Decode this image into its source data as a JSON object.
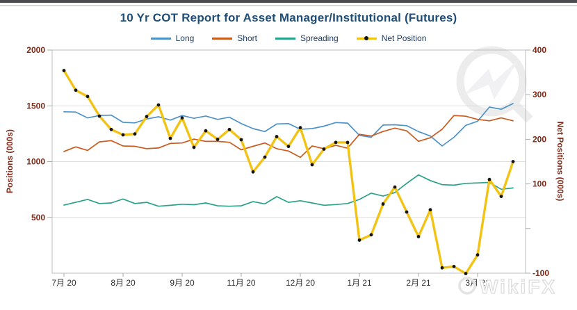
{
  "window": {
    "top_edge_color": "#4a4a4f",
    "divider_color": "#d6d6da"
  },
  "chart_data": {
    "type": "line",
    "title": "10 Yr COT Report for Asset Manager/Institutional (Futures)",
    "title_color": "#1f4e79",
    "legend_position": "top",
    "grid": "horizontal",
    "x_tick_labels": [
      "7月 20",
      "8月 20",
      "9月 20",
      "11月 20",
      "12月 20",
      "1月 21",
      "2月 21",
      "3月 21"
    ],
    "x_tick_indices": [
      0,
      5,
      10,
      15,
      20,
      25,
      30,
      35
    ],
    "left_axis": {
      "title": "Positions (000s)",
      "range": [
        0,
        2000
      ],
      "ticks": [
        500,
        1000,
        1500,
        2000
      ],
      "label_color": "#7e2817"
    },
    "right_axis": {
      "title": "Net Positions (000s)",
      "range": [
        -100,
        400
      ],
      "ticks": [
        -100,
        0,
        100,
        200,
        300,
        400
      ],
      "unlabeled_ticks": [
        0
      ],
      "label_color": "#7e2817"
    },
    "series": [
      {
        "name": "Long",
        "axis": "left",
        "color": "#4d93c9",
        "marker": "none",
        "values": [
          1447,
          1444,
          1392,
          1413,
          1417,
          1352,
          1347,
          1382,
          1402,
          1372,
          1413,
          1388,
          1409,
          1378,
          1398,
          1341,
          1296,
          1269,
          1337,
          1341,
          1290,
          1296,
          1318,
          1350,
          1345,
          1235,
          1218,
          1328,
          1330,
          1322,
          1269,
          1229,
          1140,
          1218,
          1325,
          1362,
          1489,
          1469,
          1520
        ]
      },
      {
        "name": "Short",
        "axis": "left",
        "color": "#ca5a1e",
        "marker": "none",
        "values": [
          1091,
          1132,
          1100,
          1177,
          1188,
          1140,
          1137,
          1116,
          1122,
          1163,
          1167,
          1202,
          1181,
          1181,
          1173,
          1106,
          1137,
          1167,
          1116,
          1095,
          1038,
          1140,
          1116,
          1146,
          1120,
          1245,
          1229,
          1270,
          1300,
          1276,
          1182,
          1214,
          1290,
          1413,
          1407,
          1378,
          1366,
          1392,
          1366
        ]
      },
      {
        "name": "Spreading",
        "axis": "left",
        "color": "#2aa189",
        "marker": "none",
        "values": [
          610,
          635,
          661,
          624,
          629,
          665,
          624,
          635,
          600,
          608,
          618,
          614,
          629,
          604,
          600,
          604,
          641,
          621,
          686,
          635,
          649,
          629,
          609,
          615,
          624,
          661,
          717,
          691,
          723,
          805,
          881,
          830,
          793,
          789,
          805,
          809,
          813,
          752,
          764
        ]
      },
      {
        "name": "Net Position",
        "axis": "right",
        "color": "#f2c313",
        "marker": "black-dot",
        "values": [
          354,
          310,
          296,
          252,
          222,
          210,
          212,
          251,
          277,
          202,
          248,
          182,
          219,
          200,
          222,
          199,
          127,
          160,
          206,
          184,
          226,
          143,
          178,
          193,
          193,
          -26,
          -14,
          55,
          93,
          37,
          -18,
          42,
          -88,
          -85,
          -101,
          -59,
          110,
          72,
          150
        ]
      }
    ],
    "watermark": {
      "logo": "wikifx-emblem",
      "text": "WikiFX",
      "color": "#ececec"
    }
  }
}
